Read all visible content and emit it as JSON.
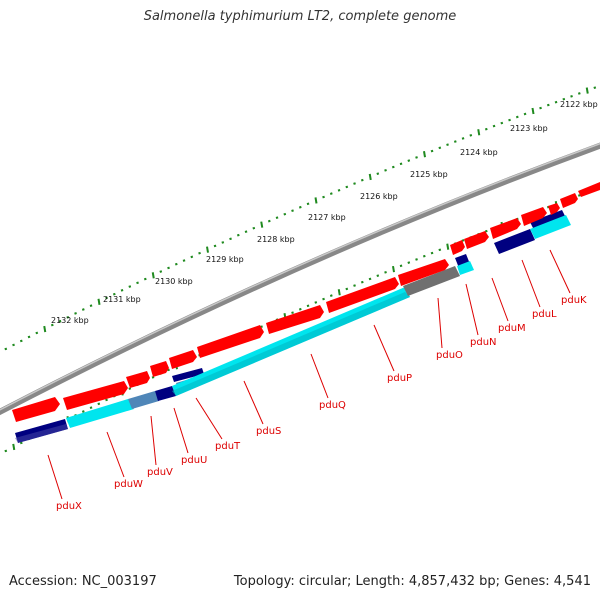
{
  "title": "Salmonella typhimurium LT2, complete genome",
  "footer": {
    "accession": "Accession: NC_003197",
    "info": "Topology: circular; Length: 4,857,432 bp; Genes: 4,541"
  },
  "colors": {
    "backbone": "#888888",
    "forward_cds": "#ff0000",
    "reverse_cds": "#000080",
    "orf": "#00e5ee",
    "overlap_orf": "#4f86b8",
    "gray_orf": "#707070",
    "tick": "#1f8a1f",
    "label": "#dd0000"
  },
  "ruler_labels": [
    "2122 kbp",
    "2123 kbp",
    "2124 kbp",
    "2125 kbp",
    "2126 kbp",
    "2127 kbp",
    "2128 kbp",
    "2129 kbp",
    "2130 kbp",
    "2131 kbp",
    "2132 kbp"
  ],
  "gene_labels": [
    "pduK",
    "pduL",
    "pduM",
    "pduN",
    "pduO",
    "pduP",
    "pduQ",
    "pduS",
    "pduT",
    "pduU",
    "pduV",
    "pduW",
    "pduX"
  ]
}
